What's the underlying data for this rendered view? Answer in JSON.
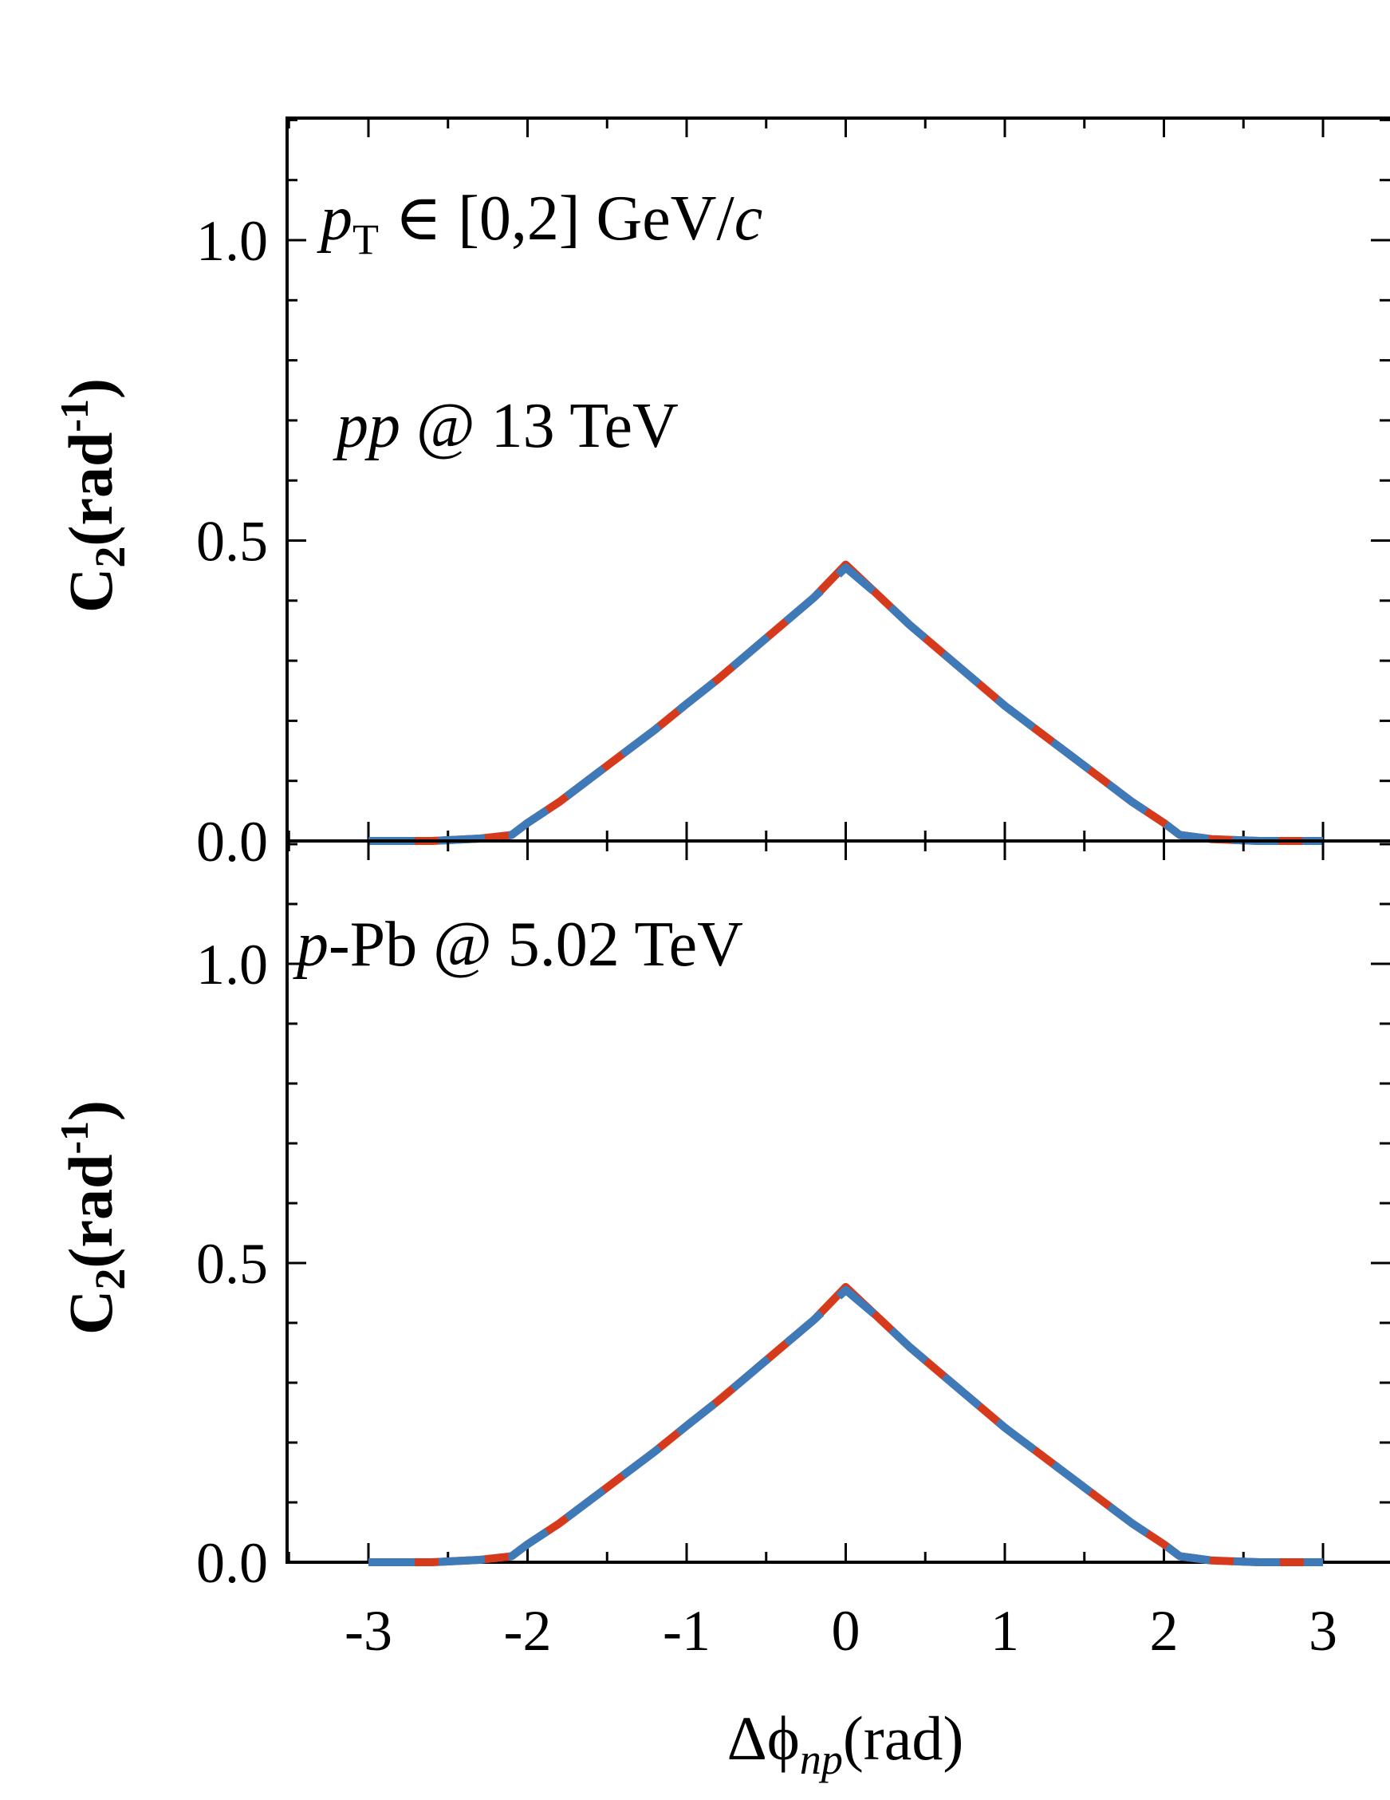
{
  "figure": {
    "xlabel": {
      "pre": "Δϕ",
      "sub": "np",
      "post": "(rad)"
    },
    "ylabel": {
      "pre": "C",
      "sub": "2",
      "mid": "(rad",
      "sup": "-1",
      "post": ")"
    }
  },
  "colors": {
    "solid": "#d63a1c",
    "dashed": "#3f7ab8",
    "axis": "#000000"
  },
  "chart_data": [
    {
      "type": "line",
      "panel": "top",
      "annotations": [
        {
          "parts": [
            {
              "t": "p",
              "style": "italic"
            },
            {
              "t": "T",
              "style": "sub"
            },
            {
              "t": " ∈ [0,2] GeV/",
              "style": "normal"
            },
            {
              "t": "c",
              "style": "italic"
            }
          ]
        },
        {
          "parts": [
            {
              "t": "pp",
              "style": "italic"
            },
            {
              "t": " @ 13 TeV",
              "style": "normal"
            }
          ]
        }
      ],
      "xlim": [
        -3.5,
        3.5
      ],
      "ylim": [
        0.0,
        1.2
      ],
      "x_ticks": [
        -3,
        -2,
        -1,
        0,
        1,
        2,
        3
      ],
      "y_ticks": [
        0.0,
        0.5,
        1.0
      ],
      "y_tick_labels": [
        "0.0",
        "0.5",
        "1.0"
      ],
      "series": [
        {
          "style": "solid",
          "x": [
            -3.0,
            -2.6,
            -2.3,
            -2.1,
            -2.0,
            -1.8,
            -1.6,
            -1.4,
            -1.2,
            -1.0,
            -0.8,
            -0.6,
            -0.4,
            -0.2,
            0.0,
            0.2,
            0.4,
            0.6,
            0.8,
            1.0,
            1.2,
            1.4,
            1.6,
            1.8,
            2.0,
            2.1,
            2.3,
            2.6,
            3.0
          ],
          "y": [
            0.0,
            0.0,
            0.004,
            0.01,
            0.03,
            0.065,
            0.105,
            0.145,
            0.185,
            0.228,
            0.27,
            0.315,
            0.36,
            0.405,
            0.46,
            0.41,
            0.36,
            0.315,
            0.27,
            0.225,
            0.185,
            0.145,
            0.105,
            0.065,
            0.03,
            0.01,
            0.003,
            0.0,
            0.0
          ]
        },
        {
          "style": "dashed",
          "x": [
            -3.0,
            -2.6,
            -2.3,
            -2.1,
            -2.0,
            -1.8,
            -1.6,
            -1.4,
            -1.2,
            -1.0,
            -0.8,
            -0.6,
            -0.4,
            -0.2,
            0.0,
            0.2,
            0.4,
            0.6,
            0.8,
            1.0,
            1.2,
            1.4,
            1.6,
            1.8,
            2.0,
            2.1,
            2.3,
            2.6,
            3.0
          ],
          "y": [
            0.0,
            0.0,
            0.004,
            0.01,
            0.03,
            0.065,
            0.105,
            0.145,
            0.185,
            0.228,
            0.27,
            0.315,
            0.36,
            0.405,
            0.455,
            0.41,
            0.36,
            0.315,
            0.27,
            0.225,
            0.185,
            0.145,
            0.105,
            0.065,
            0.03,
            0.01,
            0.003,
            0.0,
            0.0
          ]
        }
      ]
    },
    {
      "type": "line",
      "panel": "bottom",
      "annotations": [
        {
          "parts": [
            {
              "t": "p",
              "style": "italic"
            },
            {
              "t": "-Pb @ 5.02 TeV",
              "style": "normal"
            }
          ]
        }
      ],
      "xlim": [
        -3.5,
        3.5
      ],
      "ylim": [
        0.0,
        1.2
      ],
      "x_ticks": [
        -3,
        -2,
        -1,
        0,
        1,
        2,
        3
      ],
      "x_tick_labels": [
        "-3",
        "-2",
        "-1",
        "0",
        "1",
        "2",
        "3"
      ],
      "y_ticks": [
        0.0,
        0.5,
        1.0
      ],
      "y_tick_labels": [
        "0.0",
        "0.5",
        "1.0"
      ],
      "series": [
        {
          "style": "solid",
          "x": [
            -3.0,
            -2.6,
            -2.3,
            -2.1,
            -2.0,
            -1.8,
            -1.6,
            -1.4,
            -1.2,
            -1.0,
            -0.8,
            -0.6,
            -0.4,
            -0.2,
            0.0,
            0.2,
            0.4,
            0.6,
            0.8,
            1.0,
            1.2,
            1.4,
            1.6,
            1.8,
            2.0,
            2.1,
            2.3,
            2.6,
            3.0
          ],
          "y": [
            0.0,
            0.0,
            0.004,
            0.01,
            0.03,
            0.065,
            0.105,
            0.145,
            0.185,
            0.228,
            0.27,
            0.315,
            0.36,
            0.405,
            0.46,
            0.41,
            0.36,
            0.315,
            0.27,
            0.225,
            0.185,
            0.145,
            0.105,
            0.065,
            0.03,
            0.01,
            0.003,
            0.0,
            0.0
          ]
        },
        {
          "style": "dashed",
          "x": [
            -3.0,
            -2.6,
            -2.3,
            -2.1,
            -2.0,
            -1.8,
            -1.6,
            -1.4,
            -1.2,
            -1.0,
            -0.8,
            -0.6,
            -0.4,
            -0.2,
            0.0,
            0.2,
            0.4,
            0.6,
            0.8,
            1.0,
            1.2,
            1.4,
            1.6,
            1.8,
            2.0,
            2.1,
            2.3,
            2.6,
            3.0
          ],
          "y": [
            0.0,
            0.0,
            0.004,
            0.01,
            0.03,
            0.065,
            0.105,
            0.145,
            0.185,
            0.228,
            0.27,
            0.315,
            0.36,
            0.405,
            0.455,
            0.41,
            0.36,
            0.315,
            0.27,
            0.225,
            0.185,
            0.145,
            0.105,
            0.065,
            0.03,
            0.01,
            0.003,
            0.0,
            0.0
          ]
        }
      ]
    }
  ]
}
